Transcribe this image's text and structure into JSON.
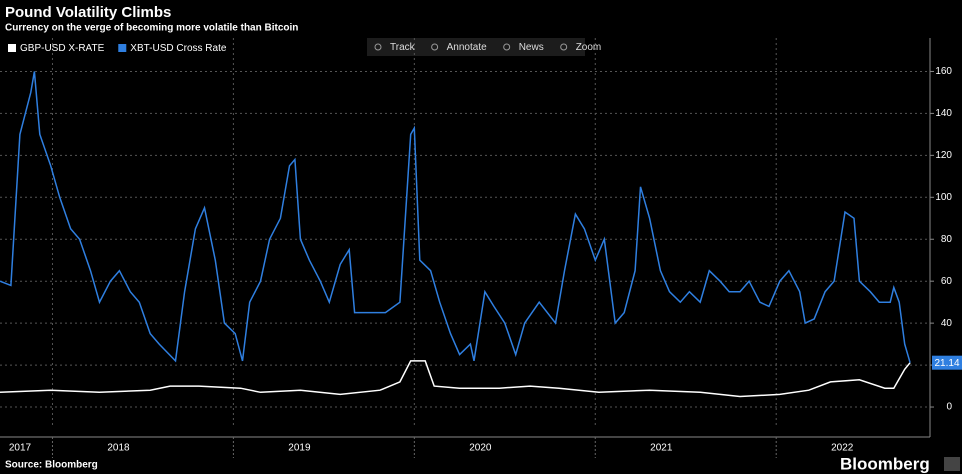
{
  "chart_data": {
    "type": "line",
    "title": "Pound Volatility Climbs",
    "subtitle": "Currency on the verge of becoming more volatile than Bitcoin",
    "toolbar": [
      "Track",
      "Annotate",
      "News",
      "Zoom"
    ],
    "source": "Source: Bloomberg",
    "brand": "Bloomberg",
    "xlim": [
      2017.71,
      2022.85
    ],
    "ylim": [
      -10,
      175
    ],
    "xticks": [
      {
        "value": 2017,
        "label": "2017"
      },
      {
        "value": 2018,
        "label": "2018"
      },
      {
        "value": 2019,
        "label": "2019"
      },
      {
        "value": 2020,
        "label": "2020"
      },
      {
        "value": 2021,
        "label": "2021"
      },
      {
        "value": 2022,
        "label": "2022"
      }
    ],
    "yticks": [
      0,
      20,
      40,
      60,
      80,
      100,
      120,
      140,
      160
    ],
    "grid": true,
    "legend": "top-left",
    "series": [
      {
        "name": "GBP-USD X-RATE",
        "color": "#ffffff",
        "x": [
          2017.71,
          2017.99,
          2018.26,
          2018.54,
          2018.65,
          2018.81,
          2019.04,
          2019.15,
          2019.37,
          2019.59,
          2019.81,
          2019.92,
          2019.98,
          2020.06,
          2020.11,
          2020.25,
          2020.47,
          2020.64,
          2020.8,
          2021.02,
          2021.3,
          2021.58,
          2021.8,
          2022.02,
          2022.18,
          2022.3,
          2022.46,
          2022.6,
          2022.65,
          2022.71,
          2022.74
        ],
        "values": [
          7,
          8,
          7,
          8,
          10,
          10,
          9,
          7,
          8,
          6,
          8,
          12,
          22,
          22,
          10,
          9,
          9,
          10,
          9,
          7,
          8,
          7,
          5,
          6,
          8,
          12,
          13,
          9,
          9,
          18,
          21.14
        ]
      },
      {
        "name": "XBT-USD Cross Rate",
        "color": "#2f7fe0",
        "x": [
          2017.71,
          2017.77,
          2017.82,
          2017.88,
          2017.9,
          2017.93,
          2017.99,
          2018.04,
          2018.1,
          2018.15,
          2018.21,
          2018.26,
          2018.32,
          2018.37,
          2018.43,
          2018.48,
          2018.54,
          2018.59,
          2018.68,
          2018.73,
          2018.79,
          2018.84,
          2018.9,
          2018.95,
          2019.01,
          2019.05,
          2019.09,
          2019.15,
          2019.2,
          2019.26,
          2019.31,
          2019.34,
          2019.37,
          2019.42,
          2019.48,
          2019.53,
          2019.59,
          2019.64,
          2019.67,
          2019.75,
          2019.84,
          2019.92,
          2019.95,
          2019.98,
          2020.0,
          2020.03,
          2020.09,
          2020.14,
          2020.2,
          2020.25,
          2020.31,
          2020.33,
          2020.39,
          2020.44,
          2020.5,
          2020.56,
          2020.61,
          2020.69,
          2020.78,
          2020.83,
          2020.89,
          2020.94,
          2021.0,
          2021.05,
          2021.11,
          2021.16,
          2021.22,
          2021.25,
          2021.3,
          2021.36,
          2021.41,
          2021.47,
          2021.52,
          2021.58,
          2021.63,
          2021.69,
          2021.74,
          2021.8,
          2021.85,
          2021.91,
          2021.96,
          2022.02,
          2022.07,
          2022.13,
          2022.16,
          2022.21,
          2022.27,
          2022.32,
          2022.38,
          2022.43,
          2022.46,
          2022.52,
          2022.57,
          2022.63,
          2022.65,
          2022.68,
          2022.71,
          2022.74
        ],
        "values": [
          60,
          58,
          130,
          150,
          160,
          130,
          115,
          100,
          85,
          80,
          65,
          50,
          60,
          65,
          55,
          50,
          35,
          30,
          22,
          55,
          85,
          95,
          70,
          40,
          35,
          22,
          50,
          60,
          80,
          90,
          115,
          118,
          80,
          70,
          60,
          50,
          68,
          75,
          45,
          45,
          45,
          50,
          90,
          130,
          133,
          70,
          65,
          50,
          35,
          25,
          30,
          22,
          55,
          48,
          40,
          25,
          40,
          50,
          40,
          65,
          92,
          85,
          70,
          80,
          40,
          45,
          65,
          105,
          90,
          65,
          55,
          50,
          55,
          50,
          65,
          60,
          55,
          55,
          60,
          50,
          48,
          60,
          65,
          55,
          40,
          42,
          55,
          60,
          93,
          90,
          60,
          55,
          50,
          50,
          57,
          50,
          30,
          21.14
        ]
      }
    ]
  }
}
